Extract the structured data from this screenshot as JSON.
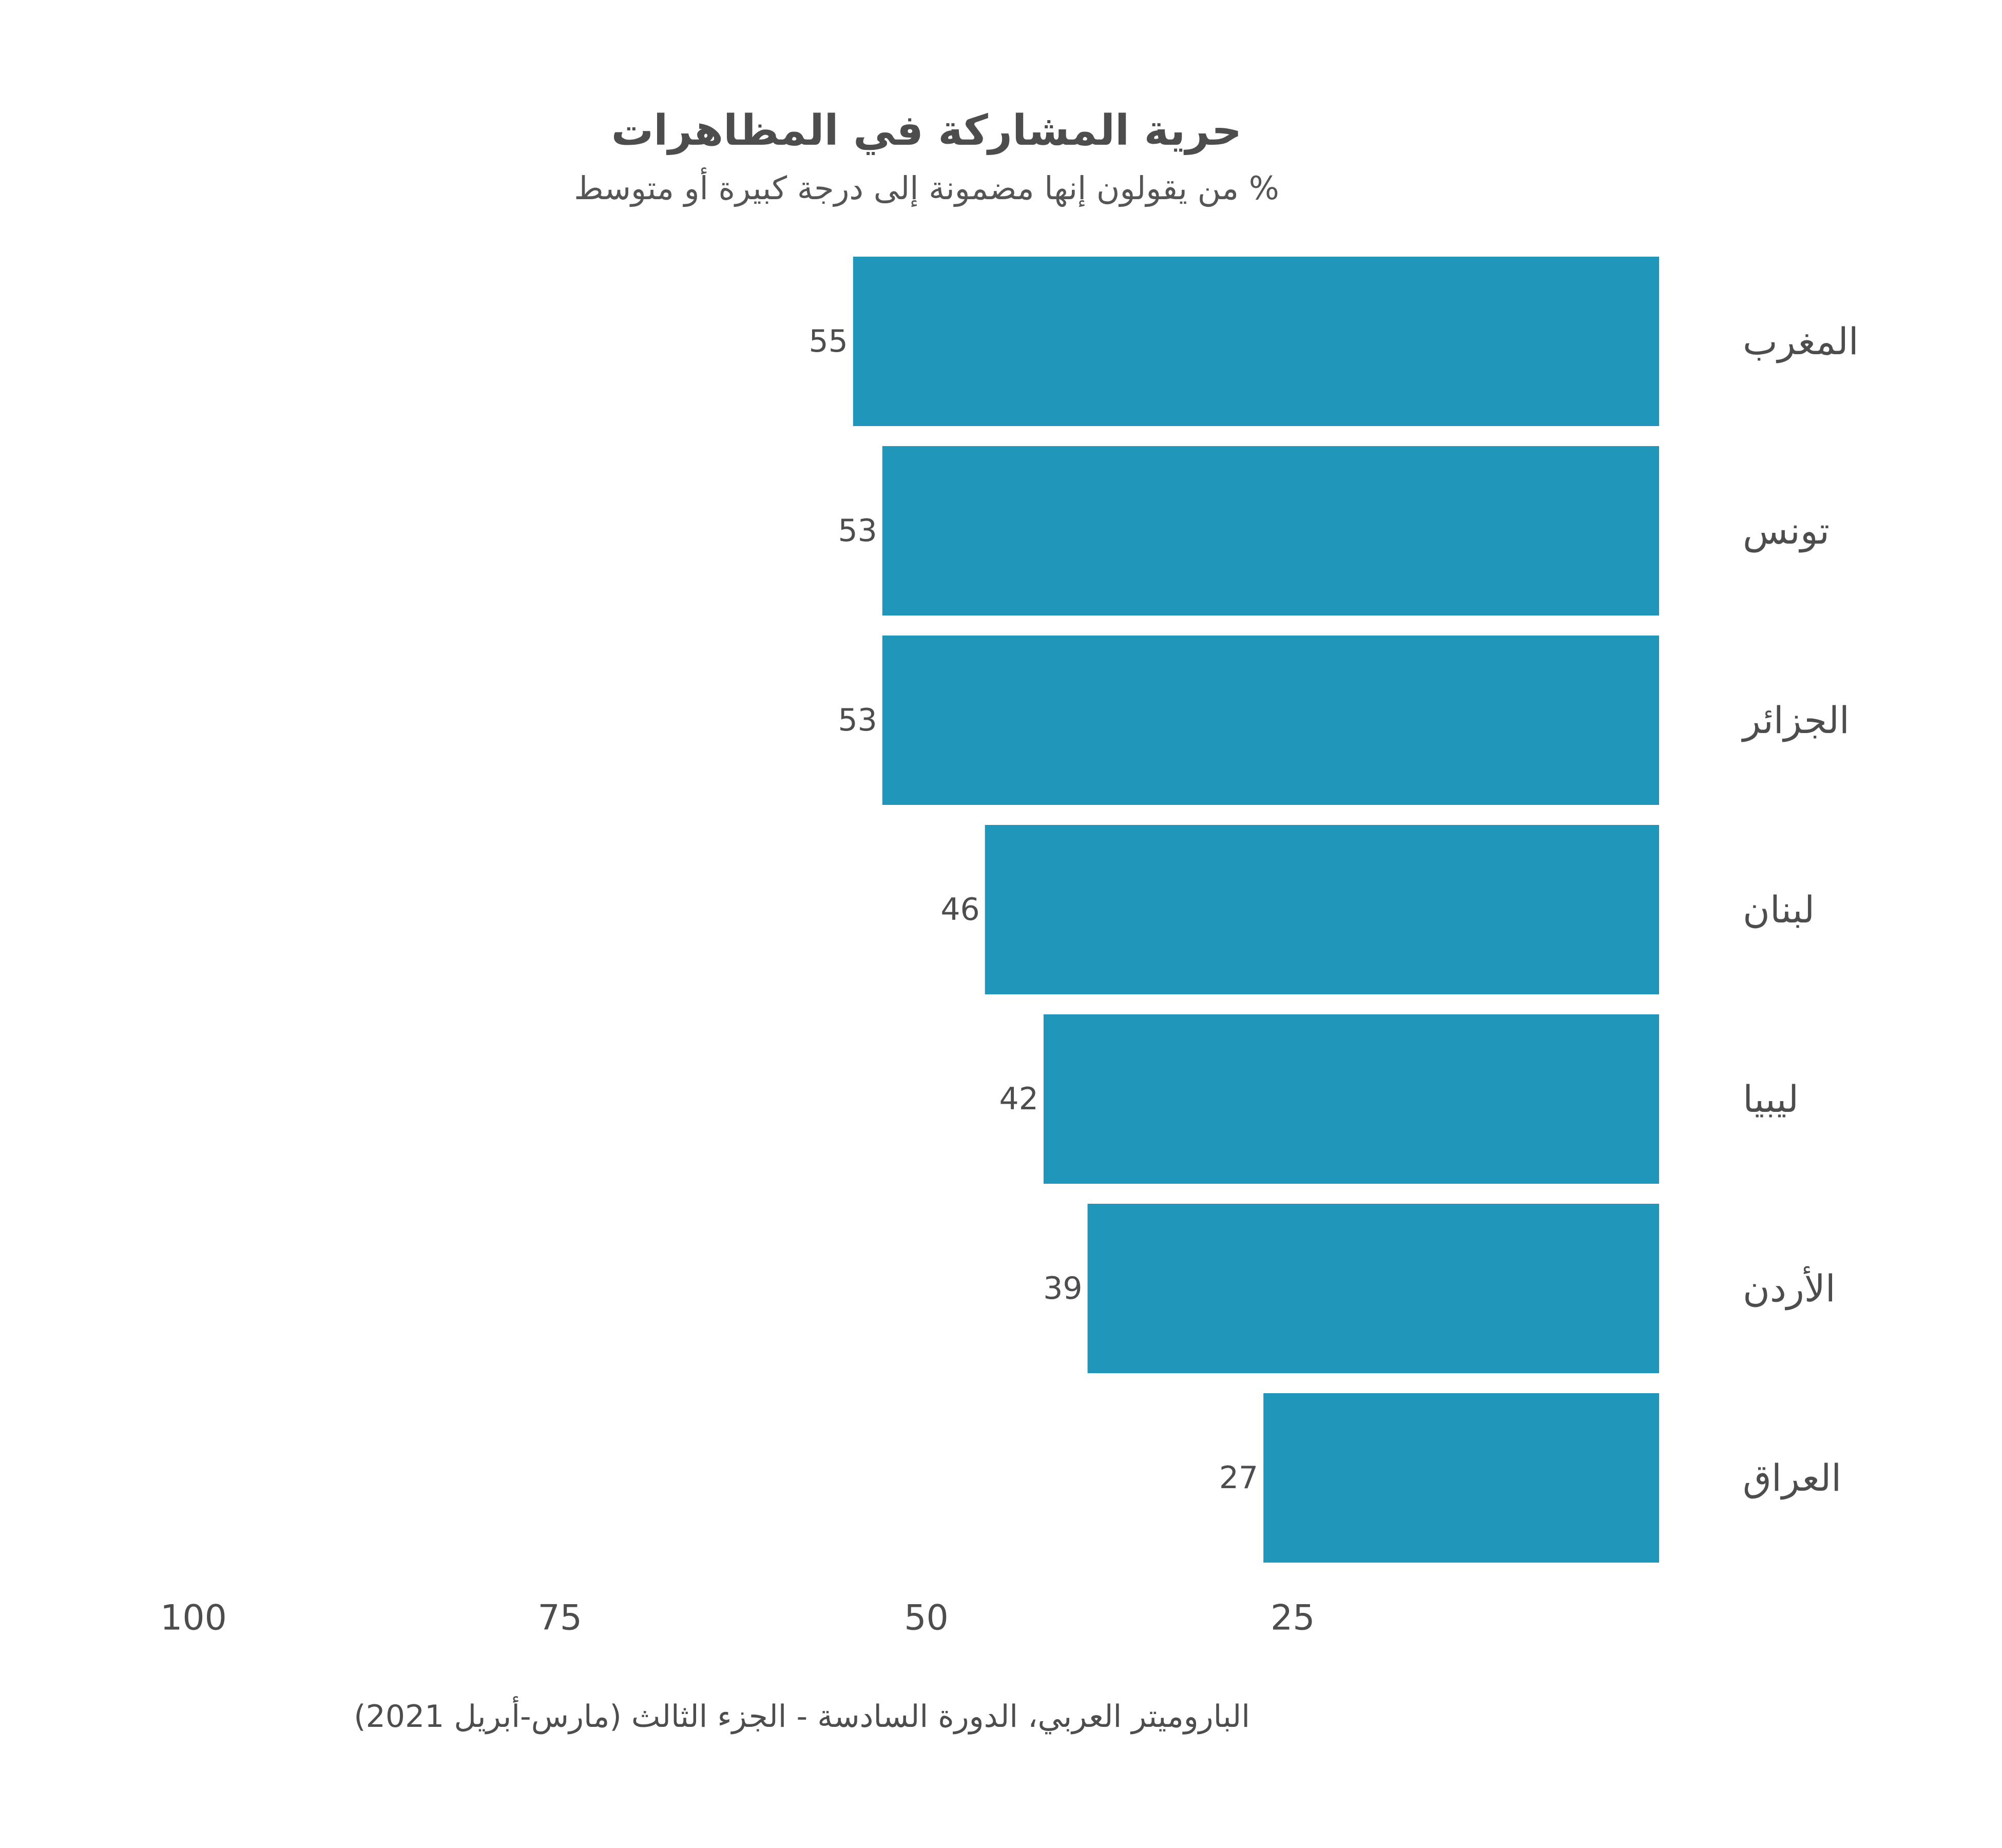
{
  "chart_data": {
    "type": "bar",
    "orientation": "horizontal",
    "direction": "right-to-left",
    "title": "حرية المشاركة في المظاهرات",
    "subtitle": "% من يقولون إنها مضمونة إلى درجة كبيرة أو متوسط",
    "categories": [
      "المغرب",
      "تونس",
      "الجزائر",
      "لبنان",
      "ليبيا",
      "الأردن",
      "العراق"
    ],
    "values": [
      55,
      53,
      53,
      46,
      42,
      39,
      27
    ],
    "xticks": [
      100,
      75,
      50,
      25
    ],
    "xlim": [
      0,
      100
    ],
    "grid": false,
    "bar_color": "#2196bb",
    "source": "الباروميتر العربي، الدورة السادسة - الجزء الثالث (مارس-أبريل 2021)"
  }
}
